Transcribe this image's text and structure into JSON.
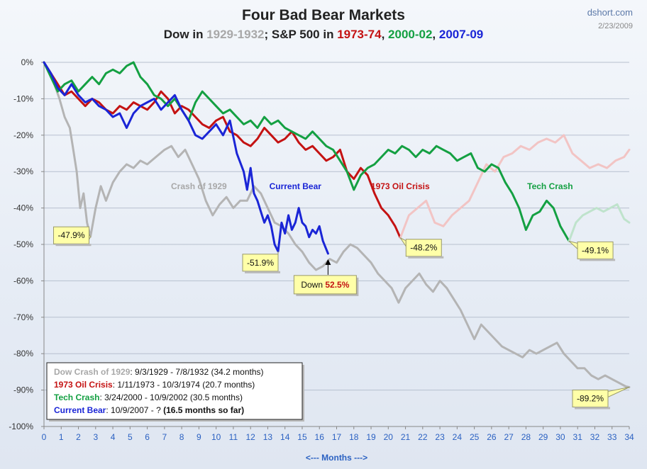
{
  "title": "Four Bad Bear Markets",
  "subtitle": {
    "parts": [
      {
        "text": "Dow in ",
        "color": "#222222"
      },
      {
        "text": "1929-1932",
        "color": "#a8a8a8"
      },
      {
        "text": "; S&P 500 in ",
        "color": "#222222"
      },
      {
        "text": "1973-74",
        "color": "#c41212"
      },
      {
        "text": ", ",
        "color": "#222222"
      },
      {
        "text": "2000-02",
        "color": "#14a042"
      },
      {
        "text": ", ",
        "color": "#222222"
      },
      {
        "text": "2007-09",
        "color": "#1a25d6"
      }
    ]
  },
  "source": "dshort.com",
  "date": "2/23/2009",
  "colors": {
    "crash1929": "#b4b4b4",
    "oil1973": "#c41212",
    "oil1973_faded": "#f2c4c4",
    "tech": "#14a042",
    "tech_faded": "#bfe3cc",
    "current": "#1a25d6",
    "grid": "#b7c0cf",
    "callout_bg": "#ffffa8",
    "xaxis_text": "#2b61c2"
  },
  "chart_data": {
    "type": "line",
    "title": "Four Bad Bear Markets",
    "xlabel": "<--- Months --->",
    "ylabel": "",
    "xlim": [
      0,
      34
    ],
    "ylim": [
      -100,
      0
    ],
    "x_ticks": [
      0,
      1,
      2,
      3,
      4,
      5,
      6,
      7,
      8,
      9,
      10,
      11,
      12,
      13,
      14,
      15,
      16,
      17,
      18,
      19,
      20,
      21,
      22,
      23,
      24,
      25,
      26,
      27,
      28,
      29,
      30,
      31,
      32,
      33,
      34
    ],
    "y_ticks": [
      0,
      -10,
      -20,
      -30,
      -40,
      -50,
      -60,
      -70,
      -80,
      -90,
      -100
    ],
    "y_tick_labels": [
      "0%",
      "-10%",
      "-20%",
      "-30%",
      "-40%",
      "-50%",
      "-60%",
      "-70%",
      "-80%",
      "-90%",
      "-100%"
    ],
    "grid": "horizontal",
    "series": [
      {
        "name": "Crash of 1929",
        "color": "#b4b4b4",
        "x": [
          0,
          0.3,
          0.6,
          0.9,
          1.2,
          1.5,
          1.7,
          1.9,
          2.1,
          2.3,
          2.5,
          2.7,
          3.0,
          3.3,
          3.6,
          4.0,
          4.4,
          4.8,
          5.2,
          5.6,
          6.0,
          6.5,
          7.0,
          7.4,
          7.8,
          8.2,
          8.6,
          9.0,
          9.4,
          9.8,
          10.2,
          10.6,
          11.0,
          11.4,
          11.8,
          12.2,
          12.6,
          13.0,
          13.4,
          13.8,
          14.2,
          14.6,
          15.0,
          15.4,
          15.8,
          16.2,
          16.6,
          17.0,
          17.4,
          17.8,
          18.2,
          18.6,
          19.0,
          19.4,
          19.8,
          20.2,
          20.6,
          21.0,
          21.4,
          21.8,
          22.2,
          22.6,
          23.0,
          23.4,
          23.8,
          24.2,
          24.6,
          25.0,
          25.4,
          25.8,
          26.2,
          26.6,
          27.0,
          27.4,
          27.8,
          28.2,
          28.6,
          29.0,
          29.4,
          29.8,
          30.2,
          30.6,
          31.0,
          31.4,
          31.8,
          32.2,
          32.6,
          33.0,
          33.4,
          33.8,
          34.0
        ],
        "y": [
          0,
          -3,
          -6,
          -10,
          -15,
          -18,
          -24,
          -30,
          -40,
          -36,
          -44,
          -47.9,
          -40,
          -34,
          -38,
          -33,
          -30,
          -28,
          -29,
          -27,
          -28,
          -26,
          -24,
          -23,
          -26,
          -24,
          -28,
          -32,
          -38,
          -42,
          -39,
          -37,
          -40,
          -38,
          -38,
          -34,
          -36,
          -40,
          -44,
          -45,
          -47,
          -50,
          -52,
          -55,
          -57,
          -56,
          -54,
          -55,
          -52,
          -50,
          -51,
          -53,
          -55,
          -58,
          -60,
          -62,
          -66,
          -62,
          -60,
          -58,
          -61,
          -63,
          -60,
          -62,
          -65,
          -68,
          -72,
          -76,
          -72,
          -74,
          -76,
          -78,
          -79,
          -80,
          -81,
          -79,
          -80,
          -79,
          -78,
          -77,
          -80,
          -82,
          -84,
          -84,
          -86,
          -87,
          -86,
          -87,
          -88,
          -89,
          -89.2
        ]
      },
      {
        "name": "1973 Oil Crisis",
        "color": "#c41212",
        "x": [
          0,
          0.4,
          0.8,
          1.2,
          1.6,
          2.0,
          2.4,
          2.8,
          3.2,
          3.6,
          4.0,
          4.4,
          4.8,
          5.2,
          5.6,
          6.0,
          6.4,
          6.8,
          7.2,
          7.6,
          8.0,
          8.4,
          8.8,
          9.2,
          9.6,
          10.0,
          10.4,
          10.8,
          11.2,
          11.6,
          12.0,
          12.4,
          12.8,
          13.2,
          13.6,
          14.0,
          14.4,
          14.8,
          15.2,
          15.6,
          16.0,
          16.4,
          16.8,
          17.2,
          17.6,
          18.0,
          18.4,
          18.8,
          19.2,
          19.6,
          20.0,
          20.4,
          20.7
        ],
        "y": [
          0,
          -3,
          -6,
          -9,
          -8,
          -10,
          -12,
          -10,
          -11,
          -13,
          -14,
          -12,
          -13,
          -11,
          -12,
          -13,
          -11,
          -8,
          -10,
          -14,
          -12,
          -13,
          -15,
          -17,
          -18,
          -16,
          -15,
          -19,
          -20,
          -22,
          -23,
          -21,
          -18,
          -20,
          -22,
          -21,
          -19,
          -22,
          -24,
          -23,
          -25,
          -27,
          -26,
          -24,
          -30,
          -32,
          -29,
          -31,
          -36,
          -40,
          -42,
          -45,
          -48.2
        ]
      },
      {
        "name": "1973 Oil Crisis (after)",
        "color": "#f2c4c4",
        "x": [
          20.7,
          21.2,
          21.7,
          22.2,
          22.7,
          23.2,
          23.7,
          24.2,
          24.7,
          25.2,
          25.7,
          26.2,
          26.7,
          27.2,
          27.7,
          28.2,
          28.7,
          29.2,
          29.7,
          30.2,
          30.7,
          31.2,
          31.7,
          32.2,
          32.7,
          33.2,
          33.7,
          34.0
        ],
        "y": [
          -48.2,
          -42,
          -40,
          -38,
          -44,
          -45,
          -42,
          -40,
          -38,
          -33,
          -28,
          -30,
          -26,
          -25,
          -23,
          -24,
          -22,
          -21,
          -22,
          -20,
          -25,
          -27,
          -29,
          -28,
          -29,
          -27,
          -26,
          -24
        ]
      },
      {
        "name": "Tech Crash",
        "color": "#14a042",
        "x": [
          0,
          0.4,
          0.8,
          1.2,
          1.6,
          2.0,
          2.4,
          2.8,
          3.2,
          3.6,
          4.0,
          4.4,
          4.8,
          5.2,
          5.6,
          6.0,
          6.4,
          6.8,
          7.2,
          7.6,
          8.0,
          8.4,
          8.8,
          9.2,
          9.6,
          10.0,
          10.4,
          10.8,
          11.2,
          11.6,
          12.0,
          12.4,
          12.8,
          13.2,
          13.6,
          14.0,
          14.4,
          14.8,
          15.2,
          15.6,
          16.0,
          16.4,
          16.8,
          17.2,
          17.6,
          18.0,
          18.4,
          18.8,
          19.2,
          19.6,
          20.0,
          20.4,
          20.8,
          21.2,
          21.6,
          22.0,
          22.4,
          22.8,
          23.2,
          23.6,
          24.0,
          24.4,
          24.8,
          25.2,
          25.6,
          26.0,
          26.4,
          26.8,
          27.2,
          27.6,
          28.0,
          28.4,
          28.8,
          29.2,
          29.6,
          30.0,
          30.5
        ],
        "y": [
          0,
          -4,
          -8,
          -6,
          -5,
          -8,
          -6,
          -4,
          -6,
          -3,
          -2,
          -3,
          -1,
          0,
          -4,
          -6,
          -9,
          -10,
          -12,
          -10,
          -13,
          -16,
          -11,
          -8,
          -10,
          -12,
          -14,
          -13,
          -15,
          -17,
          -16,
          -18,
          -15,
          -17,
          -16,
          -18,
          -19,
          -20,
          -21,
          -19,
          -21,
          -23,
          -24,
          -27,
          -30,
          -35,
          -31,
          -29,
          -28,
          -26,
          -24,
          -25,
          -23,
          -24,
          -26,
          -24,
          -25,
          -23,
          -24,
          -25,
          -27,
          -26,
          -25,
          -29,
          -30,
          -28,
          -29,
          -33,
          -36,
          -40,
          -46,
          -42,
          -41,
          -38,
          -40,
          -45,
          -49.1
        ]
      },
      {
        "name": "Tech Crash (after)",
        "color": "#bfe3cc",
        "x": [
          30.5,
          30.9,
          31.3,
          31.7,
          32.1,
          32.5,
          32.9,
          33.3,
          33.7,
          34.0
        ],
        "y": [
          -49.1,
          -44,
          -42,
          -41,
          -40,
          -41,
          -40,
          -39,
          -43,
          -44
        ]
      },
      {
        "name": "Current Bear",
        "color": "#1a25d6",
        "x": [
          0,
          0.4,
          0.8,
          1.2,
          1.6,
          2.0,
          2.4,
          2.8,
          3.2,
          3.6,
          4.0,
          4.4,
          4.8,
          5.2,
          5.6,
          6.0,
          6.4,
          6.8,
          7.2,
          7.6,
          8.0,
          8.4,
          8.8,
          9.2,
          9.6,
          10.0,
          10.4,
          10.8,
          11.2,
          11.6,
          11.8,
          12.0,
          12.2,
          12.4,
          12.6,
          12.8,
          13.0,
          13.2,
          13.4,
          13.6,
          13.8,
          14.0,
          14.2,
          14.4,
          14.6,
          14.8,
          15.0,
          15.2,
          15.4,
          15.6,
          15.8,
          16.0,
          16.2,
          16.5
        ],
        "y": [
          0,
          -3,
          -7,
          -9,
          -6,
          -9,
          -11,
          -10,
          -12,
          -13,
          -15,
          -14,
          -18,
          -14,
          -12,
          -11,
          -10,
          -13,
          -11,
          -9,
          -13,
          -16,
          -20,
          -21,
          -19,
          -17,
          -20,
          -16,
          -25,
          -30,
          -35,
          -29,
          -36,
          -38,
          -41,
          -44,
          -42,
          -45,
          -50,
          -51.9,
          -44,
          -47,
          -42,
          -46,
          -44,
          -40,
          -44,
          -45,
          -48,
          -46,
          -47,
          -45,
          -49,
          -52.5
        ]
      }
    ],
    "annotations": [
      {
        "label": "Crash of 1929",
        "x": 9.0,
        "y": -34,
        "color": "#a8a8a8"
      },
      {
        "label": "Current Bear",
        "x": 14.6,
        "y": -34,
        "color": "#1a25d6"
      },
      {
        "label": "1973 Oil Crisis",
        "x": 20.7,
        "y": -34,
        "color": "#c41212"
      },
      {
        "label": "Tech Crash",
        "x": 29.4,
        "y": -34,
        "color": "#14a042"
      }
    ],
    "callouts": [
      {
        "text": "-47.9%",
        "x": 2.7,
        "y": -47.9
      },
      {
        "text": "-51.9%",
        "x": 13.6,
        "y": -51.9
      },
      {
        "text": "-48.2%",
        "x": 20.7,
        "y": -48.2
      },
      {
        "text": "-49.1%",
        "x": 30.5,
        "y": -49.1
      },
      {
        "text": "-89.2%",
        "x": 34.0,
        "y": -89.2
      }
    ],
    "down_callout": {
      "prefix": "Down ",
      "value": "52.5%",
      "x": 16.5,
      "y": -52.5
    }
  },
  "legend": [
    {
      "label": "Dow Crash of 1929",
      "detail": ": 9/3/1929  - 7/8/1932  (34.2 months)",
      "color": "#a8a8a8"
    },
    {
      "label": "1973 Oil Crisis",
      "detail": ": 1/11/1973  - 10/3/1974  (20.7 months)",
      "color": "#c41212"
    },
    {
      "label": "Tech Crash",
      "detail": ":  3/24/2000  - 10/9/2002  (30.5 months)",
      "color": "#14a042"
    },
    {
      "label": "Current Bear",
      "detail": ": 10/9/2007  - ?  ",
      "extra": "(16.5 months so far)",
      "color": "#1a25d6"
    }
  ]
}
